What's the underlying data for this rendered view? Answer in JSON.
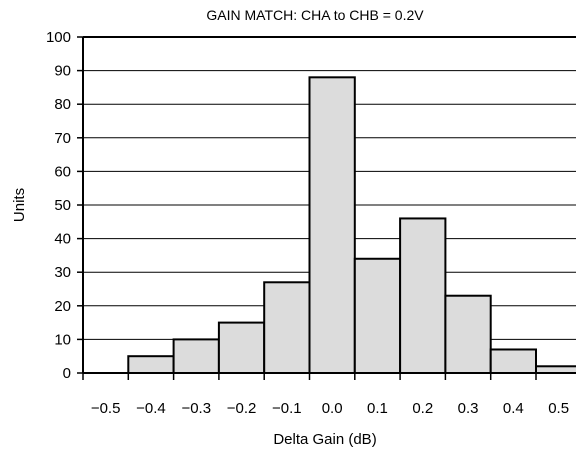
{
  "chart_data": {
    "type": "bar",
    "title": "GAIN MATCH: CHA to CHB = 0.2V",
    "xlabel": "Delta Gain (dB)",
    "ylabel": "Units",
    "categories": [
      "-0.5",
      "-0.4",
      "-0.3",
      "-0.2",
      "-0.1",
      "0.0",
      "0.1",
      "0.2",
      "0.3",
      "0.4",
      "0.5"
    ],
    "x_tick_labels": [
      "−0.5",
      "−0.4",
      "−0.3",
      "−0.2",
      "−0.1",
      "0.0",
      "0.1",
      "0.2",
      "0.3",
      "0.4",
      "0.5"
    ],
    "values": [
      0,
      5,
      10,
      15,
      27,
      88,
      34,
      46,
      23,
      7,
      2
    ],
    "y_ticks": [
      0,
      10,
      20,
      30,
      40,
      50,
      60,
      70,
      80,
      90,
      100
    ],
    "ylim": [
      0,
      100
    ],
    "grid": true,
    "legend": "none",
    "colors": {
      "bar_fill": "#dcdcdc",
      "bar_stroke": "#000000",
      "grid": "#000000"
    }
  }
}
